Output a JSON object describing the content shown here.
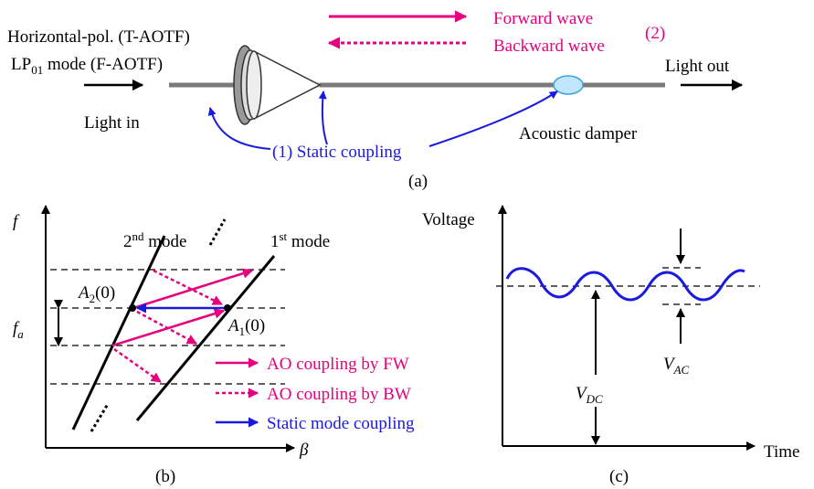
{
  "panel_a": {
    "input_line1": "Horizontal-pol. (T-AOTF)",
    "input_line2": {
      "base": "LP",
      "sub": "01",
      "rest": " mode (F-AOTF)"
    },
    "light_in": "Light in",
    "light_out": "Light out",
    "forward_wave": "Forward wave",
    "backward_wave": "Backward wave",
    "wave_number": "(2)",
    "static_coupling": "(1) Static coupling",
    "acoustic_damper": "Acoustic damper",
    "caption": "(a)"
  },
  "panel_b": {
    "y_axis": "f",
    "x_axis": "β",
    "mode2": {
      "num": "2",
      "sup": "nd",
      "rest": " mode"
    },
    "mode1": {
      "num": "1",
      "sup": "st",
      "rest": " mode"
    },
    "point2": {
      "base": "A",
      "sub": "2",
      "rest": "(0)"
    },
    "point1": {
      "base": "A",
      "sub": "1",
      "rest": "(0)"
    },
    "fa": {
      "base": "f",
      "sub": "a"
    },
    "legend": [
      "AO coupling by FW",
      "AO coupling by BW",
      "Static mode coupling"
    ],
    "caption": "(b)"
  },
  "panel_c": {
    "y_axis": "Voltage",
    "x_axis": "Time",
    "vdc": {
      "base": "V",
      "sub": "DC"
    },
    "vac": {
      "base": "V",
      "sub": "AC"
    },
    "caption": "(c)"
  }
}
